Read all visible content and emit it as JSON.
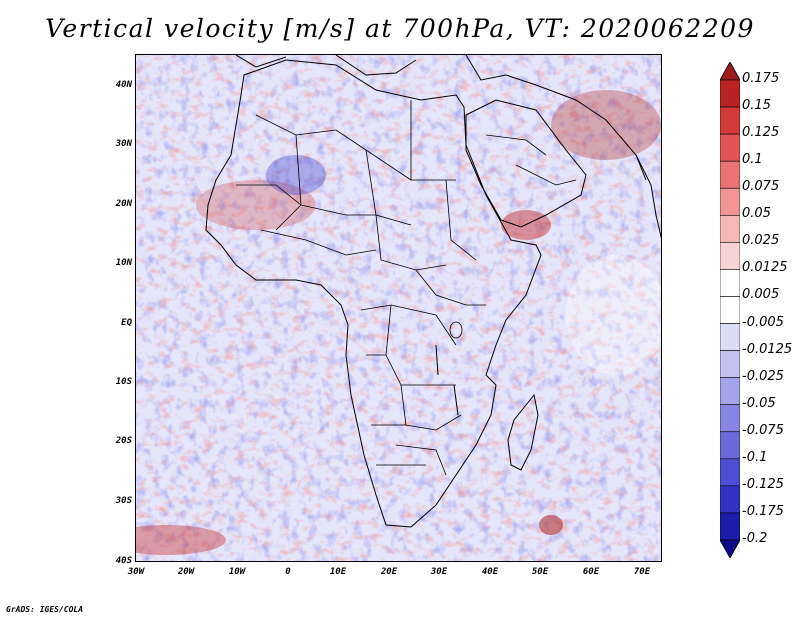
{
  "title": "Vertical velocity [m/s] at 700hPa, VT: 2020062209",
  "credit": "GrADS: IGES/COLA",
  "map": {
    "lat_labels": [
      "40N",
      "30N",
      "20N",
      "10N",
      "EQ",
      "10S",
      "20S",
      "30S",
      "40S"
    ],
    "lon_labels": [
      "30W",
      "20W",
      "10W",
      "0",
      "10E",
      "20E",
      "30E",
      "40E",
      "50E",
      "60E",
      "70E"
    ],
    "region": "Africa and Middle East",
    "variable": "vertical velocity",
    "level": "700hPa",
    "valid_time": "2020062209"
  },
  "colorbar": {
    "levels": [
      "0.175",
      "0.15",
      "0.125",
      "0.1",
      "0.075",
      "0.05",
      "0.025",
      "0.0125",
      "0.005",
      "-0.005",
      "-0.0125",
      "-0.025",
      "-0.05",
      "-0.075",
      "-0.1",
      "-0.125",
      "-0.175",
      "-0.2"
    ],
    "colors": [
      "#9b1c1c",
      "#b82323",
      "#d23a3a",
      "#e05555",
      "#ea7373",
      "#f09494",
      "#f5b6b6",
      "#f9d3d3",
      "#ffffff",
      "#ffffff",
      "#dcdcf7",
      "#c1c1f2",
      "#a4a4ec",
      "#8686e4",
      "#6a6adc",
      "#4e4ed2",
      "#3232c4",
      "#1c1cab",
      "#0c0c8a"
    ]
  },
  "colors": {
    "positive": "#e05555",
    "negative": "#6a6adc",
    "border": "#000000"
  }
}
